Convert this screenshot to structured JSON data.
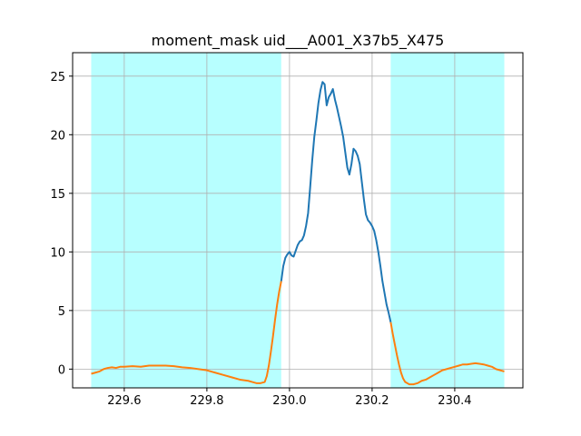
{
  "chart_data": {
    "type": "line",
    "title": "moment_mask uid___A001_X37b5_X475",
    "xlabel": "",
    "ylabel": "",
    "xlim": [
      229.475,
      230.565
    ],
    "ylim": [
      -1.6,
      27.0
    ],
    "grid": true,
    "x_ticks": [
      229.6,
      229.8,
      230.0,
      230.2,
      230.4
    ],
    "x_tick_labels": [
      "229.6",
      "229.8",
      "230.0",
      "230.2",
      "230.4"
    ],
    "y_ticks": [
      0,
      5,
      10,
      15,
      20,
      25
    ],
    "y_tick_labels": [
      "0",
      "5",
      "10",
      "15",
      "20",
      "25"
    ],
    "shaded_regions": [
      {
        "x0": 229.52,
        "x1": 229.98,
        "color": "#b3ffff"
      },
      {
        "x0": 230.245,
        "x1": 230.52,
        "color": "#b3ffff"
      }
    ],
    "series": [
      {
        "color": "#1f77b4",
        "x": [
          229.98,
          229.985,
          229.99,
          229.995,
          230.0,
          230.005,
          230.01,
          230.015,
          230.02,
          230.025,
          230.03,
          230.035,
          230.04,
          230.045,
          230.05,
          230.055,
          230.06,
          230.065,
          230.07,
          230.075,
          230.08,
          230.085,
          230.09,
          230.095,
          230.1,
          230.105,
          230.11,
          230.115,
          230.12,
          230.125,
          230.13,
          230.135,
          230.14,
          230.145,
          230.15,
          230.155,
          230.16,
          230.165,
          230.17,
          230.175,
          230.18,
          230.185,
          230.19,
          230.195,
          230.2,
          230.205,
          230.21,
          230.215,
          230.22,
          230.225,
          230.23,
          230.235,
          230.24,
          230.245
        ],
        "y": [
          7.5,
          8.8,
          9.5,
          9.8,
          10.0,
          9.7,
          9.6,
          10.1,
          10.6,
          10.9,
          11.0,
          11.4,
          12.2,
          13.3,
          15.5,
          17.8,
          19.8,
          21.2,
          22.7,
          23.8,
          24.5,
          24.3,
          22.5,
          23.2,
          23.5,
          23.9,
          23.0,
          22.3,
          21.5,
          20.7,
          19.8,
          18.5,
          17.2,
          16.6,
          17.5,
          18.8,
          18.6,
          18.2,
          17.5,
          16.0,
          14.5,
          13.2,
          12.7,
          12.5,
          12.2,
          11.8,
          11.0,
          10.0,
          8.8,
          7.5,
          6.5,
          5.5,
          4.8,
          4.0
        ]
      },
      {
        "color": "#ff7f0e",
        "x": [
          229.52,
          229.53,
          229.54,
          229.55,
          229.56,
          229.57,
          229.58,
          229.59,
          229.6,
          229.62,
          229.64,
          229.66,
          229.68,
          229.7,
          229.72,
          229.74,
          229.76,
          229.78,
          229.8,
          229.82,
          229.84,
          229.86,
          229.88,
          229.9,
          229.91,
          229.92,
          229.93,
          229.94,
          229.945,
          229.95,
          229.955,
          229.96,
          229.965,
          229.97,
          229.975,
          229.98
        ],
        "y": [
          -0.4,
          -0.3,
          -0.2,
          0.0,
          0.1,
          0.15,
          0.1,
          0.2,
          0.2,
          0.25,
          0.2,
          0.3,
          0.3,
          0.3,
          0.25,
          0.15,
          0.1,
          0.0,
          -0.1,
          -0.3,
          -0.5,
          -0.7,
          -0.9,
          -1.0,
          -1.1,
          -1.2,
          -1.2,
          -1.1,
          -0.6,
          0.3,
          1.5,
          2.8,
          4.2,
          5.5,
          6.6,
          7.5
        ]
      },
      {
        "color": "#ff7f0e",
        "x": [
          230.245,
          230.25,
          230.255,
          230.26,
          230.265,
          230.27,
          230.275,
          230.28,
          230.29,
          230.3,
          230.31,
          230.32,
          230.33,
          230.34,
          230.35,
          230.36,
          230.37,
          230.38,
          230.39,
          230.4,
          230.41,
          230.42,
          230.43,
          230.44,
          230.45,
          230.46,
          230.47,
          230.48,
          230.49,
          230.5,
          230.51,
          230.52
        ],
        "y": [
          4.0,
          3.0,
          2.1,
          1.2,
          0.4,
          -0.3,
          -0.8,
          -1.1,
          -1.3,
          -1.3,
          -1.2,
          -1.0,
          -0.9,
          -0.7,
          -0.5,
          -0.3,
          -0.1,
          0.0,
          0.1,
          0.2,
          0.3,
          0.4,
          0.4,
          0.45,
          0.5,
          0.45,
          0.4,
          0.3,
          0.2,
          0.0,
          -0.1,
          -0.2
        ]
      }
    ]
  }
}
